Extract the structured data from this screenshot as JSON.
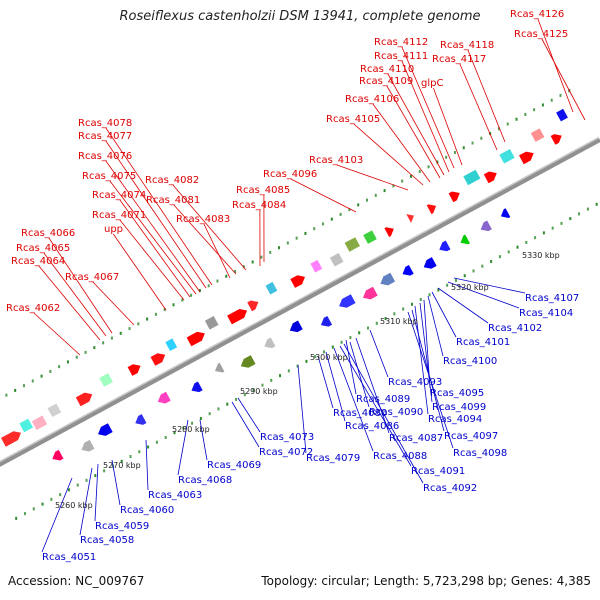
{
  "title": "Roseiflexus castenholzii DSM 13941, complete genome",
  "footer": {
    "accession": "Accession: NC_009767",
    "summary": "Topology: circular; Length: 5,723,298 bp; Genes: 4,385"
  },
  "colors": {
    "forward_label": "#dd0000",
    "reverse_label": "#0000cc",
    "forward_gene": "#ff0000",
    "reverse_gene": "#0000ee",
    "backbone": "#909090"
  },
  "ticks": [
    "5260 kbp",
    "5270 kbp",
    "5280 kbp",
    "5290 kbp",
    "5300 kbp",
    "5310 kbp",
    "5320 kbp",
    "5330 kbp"
  ],
  "forward_labels": [
    "Rcas_4126",
    "Rcas_4125",
    "Rcas_4112",
    "Rcas_4118",
    "Rcas_4111",
    "Rcas_4117",
    "Rcas_4110",
    "Rcas_4109",
    "glpC",
    "Rcas_4106",
    "Rcas_4105",
    "Rcas_4078",
    "Rcas_4077",
    "Rcas_4076",
    "Rcas_4103",
    "Rcas_4082",
    "Rcas_4075",
    "Rcas_4096",
    "Rcas_4074",
    "Rcas_4081",
    "Rcas_4085",
    "Rcas_4084",
    "Rcas_4071",
    "Rcas_4083",
    "upp",
    "Rcas_4066",
    "Rcas_4065",
    "Rcas_4064",
    "Rcas_4067",
    "Rcas_4062"
  ],
  "reverse_labels": [
    "Rcas_4107",
    "Rcas_4104",
    "Rcas_4102",
    "Rcas_4101",
    "Rcas_4100",
    "Rcas_4093",
    "Rcas_4095",
    "Rcas_4089",
    "Rcas_4099",
    "Rcas_4090",
    "Rcas_4094",
    "Rcas_4080",
    "Rcas_4086",
    "Rcas_4087",
    "Rcas_4097",
    "Rcas_4073",
    "Rcas_4098",
    "Rcas_4088",
    "Rcas_4079",
    "Rcas_4072",
    "Rcas_4091",
    "Rcas_4069",
    "Rcas_4092",
    "Rcas_4068",
    "Rcas_4063",
    "Rcas_4060",
    "Rcas_4059",
    "Rcas_4058",
    "Rcas_4051"
  ]
}
